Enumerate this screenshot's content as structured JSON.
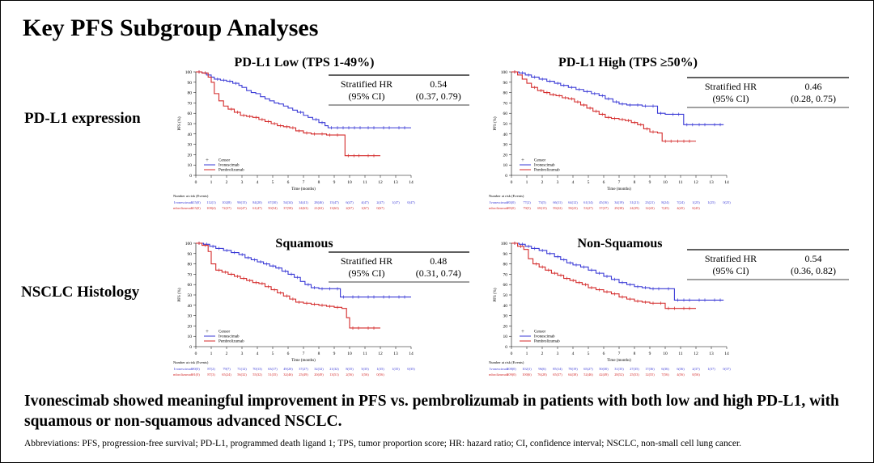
{
  "slide_title": "Key PFS Subgroup Analyses",
  "row_labels": [
    "PD-L1 expression",
    "NSCLC Histology"
  ],
  "conclusion": "Ivonescimab showed meaningful improvement in PFS vs. pembrolizumab in patients with both low and high PD-L1, with squamous or non-squamous advanced NSCLC.",
  "abbreviations": "Abbreviations: PFS, progression-free survival; PD-L1, programmed death ligand 1; TPS, tumor proportion score; HR: hazard ratio; CI, confidence interval; NSCLC, non-small cell lung cancer.",
  "colors": {
    "ivonescimab": "#3a3ad6",
    "pembrolizumab": "#d42a2a"
  },
  "chart_data": [
    {
      "type": "line",
      "title": "PD-L1 Low (TPS 1-49%)",
      "xlabel": "Time (months)",
      "ylabel": "PFS (%)",
      "xlim": [
        0,
        14
      ],
      "ylim": [
        0,
        100
      ],
      "x_ticks": [
        0,
        1,
        2,
        3,
        4,
        5,
        6,
        7,
        8,
        9,
        10,
        11,
        12,
        13,
        14
      ],
      "y_ticks": [
        0,
        10,
        20,
        30,
        40,
        50,
        60,
        70,
        80,
        90,
        100
      ],
      "legend": [
        "Censor",
        "Ivonescimab",
        "Pembrolizumab"
      ],
      "hr_label": [
        "Stratified HR",
        "(95% CI)"
      ],
      "hr_value": [
        "0.54",
        "(0.37, 0.79)"
      ],
      "series": [
        {
          "name": "Ivonescimab",
          "x": [
            0,
            0.4,
            0.7,
            1.0,
            1.2,
            1.6,
            2.0,
            2.4,
            2.8,
            3.0,
            3.3,
            3.6,
            3.9,
            4.2,
            4.5,
            4.8,
            5.1,
            5.4,
            5.7,
            6.0,
            6.3,
            6.6,
            7.0,
            7.3,
            7.6,
            8.0,
            8.4,
            8.6,
            9.0,
            11,
            12,
            13,
            14
          ],
          "y": [
            100,
            99,
            97,
            95,
            93,
            92,
            91,
            89,
            87,
            85,
            82,
            80,
            79,
            76,
            74,
            72,
            70,
            69,
            67,
            65,
            63,
            61,
            58,
            56,
            54,
            51,
            48,
            46,
            46,
            46,
            46,
            46,
            46
          ]
        },
        {
          "name": "Pembrolizumab",
          "x": [
            0,
            0.4,
            0.8,
            1.0,
            1.2,
            1.5,
            1.8,
            2.1,
            2.5,
            2.9,
            3.3,
            3.7,
            4.1,
            4.5,
            4.9,
            5.3,
            5.7,
            6.1,
            6.5,
            7.0,
            7.5,
            8.0,
            8.5,
            9.0,
            9.5,
            9.7,
            10.4,
            11,
            12
          ],
          "y": [
            100,
            99,
            95,
            90,
            79,
            72,
            67,
            64,
            61,
            58,
            57,
            56,
            54,
            52,
            50,
            48,
            47,
            46,
            43,
            41,
            40,
            40,
            39,
            39,
            39,
            19,
            19,
            19,
            19
          ]
        }
      ],
      "risk_table": {
        "header": "Number at risk (Events)",
        "rows": [
          {
            "name": "Ivonescimab",
            "values": [
              "115(0)",
              "112(1)",
              "102(8)",
              "90(15)",
              "84(20)",
              "67(30)",
              "54(34)",
              "34(41)",
              "28(46)",
              "15(47)",
              "6(47)",
              "4(47)",
              "2(47)",
              "1(47)",
              "0(47)"
            ]
          },
          {
            "name": "Pembrolizumab",
            "values": [
              "115(0)",
              "108(4)",
              "72(37)",
              "62(47)",
              "61(47)",
              "50(54)",
              "37(58)",
              "24(63)",
              "21(63)",
              "13(63)",
              "2(67)",
              "1(67)",
              "0(67)",
              "",
              ""
            ]
          }
        ]
      }
    },
    {
      "type": "line",
      "title": "PD-L1 High (TPS ≥50%)",
      "xlabel": "Time (months)",
      "ylabel": "PFS (%)",
      "xlim": [
        0,
        14
      ],
      "ylim": [
        0,
        100
      ],
      "x_ticks": [
        0,
        1,
        2,
        3,
        4,
        5,
        6,
        7,
        8,
        9,
        10,
        11,
        12,
        13,
        14
      ],
      "y_ticks": [
        0,
        10,
        20,
        30,
        40,
        50,
        60,
        70,
        80,
        90,
        100
      ],
      "legend": [
        "Censor",
        "Ivonescimab",
        "Pembrolizumab"
      ],
      "hr_label": [
        "Stratified HR",
        "(95% CI)"
      ],
      "hr_value": [
        "0.46",
        "(0.28, 0.75)"
      ],
      "series": [
        {
          "name": "Ivonescimab",
          "x": [
            0,
            0.5,
            0.9,
            1.3,
            1.8,
            2.3,
            2.8,
            3.2,
            3.7,
            4.2,
            4.7,
            5.2,
            5.7,
            6.1,
            6.6,
            7.0,
            7.5,
            8.0,
            8.5,
            9.0,
            9.5,
            10.0,
            10.3,
            11.2,
            12,
            13,
            13.8
          ],
          "y": [
            100,
            99,
            97,
            95,
            93,
            91,
            89,
            87,
            85,
            83,
            81,
            79,
            77,
            74,
            71,
            69,
            68,
            68,
            67,
            67,
            60,
            59,
            59,
            49,
            49,
            49,
            49
          ]
        },
        {
          "name": "Pembrolizumab",
          "x": [
            0,
            0.4,
            0.7,
            1.0,
            1.3,
            1.7,
            2.1,
            2.5,
            2.9,
            3.3,
            3.7,
            4.1,
            4.5,
            4.9,
            5.3,
            5.7,
            6.1,
            6.5,
            7.0,
            7.4,
            7.8,
            8.2,
            8.6,
            9.0,
            9.5,
            9.8,
            10.6,
            11,
            12
          ],
          "y": [
            100,
            97,
            93,
            89,
            85,
            82,
            80,
            78,
            77,
            75,
            74,
            71,
            68,
            65,
            62,
            59,
            56,
            55,
            54,
            53,
            51,
            49,
            45,
            42,
            41,
            33,
            33,
            33,
            33
          ]
        }
      ],
      "risk_table": {
        "header": "Number at risk (Events)",
        "rows": [
          {
            "name": "Ivonescimab",
            "values": [
              "83(0)",
              "77(2)",
              "73(5)",
              "66(11)",
              "64(12)",
              "61(14)",
              "45(16)",
              "34(19)",
              "31(21)",
              "23(21)",
              "8(24)",
              "7(24)",
              "1(25)",
              "1(25)",
              "0(25)"
            ]
          },
          {
            "name": "Pembrolizumab",
            "values": [
              "85(0)",
              "79(5)",
              "69(15)",
              "59(22)",
              "58(23)",
              "53(27)",
              "37(37)",
              "29(38)",
              "24(39)",
              "12(43)",
              "7(45)",
              "4(45)",
              "0(45)",
              "",
              ""
            ]
          }
        ]
      }
    },
    {
      "type": "line",
      "title": "Squamous",
      "xlabel": "Time (months)",
      "ylabel": "PFS (%)",
      "xlim": [
        0,
        14
      ],
      "ylim": [
        0,
        100
      ],
      "x_ticks": [
        0,
        1,
        2,
        3,
        4,
        5,
        6,
        7,
        8,
        9,
        10,
        11,
        12,
        13,
        14
      ],
      "y_ticks": [
        0,
        10,
        20,
        30,
        40,
        50,
        60,
        70,
        80,
        90,
        100
      ],
      "legend": [
        "Censor",
        "Ivonescimab",
        "Pembrolizumab"
      ],
      "hr_label": [
        "Stratified HR",
        "(95% CI)"
      ],
      "hr_value": [
        "0.48",
        "(0.31, 0.74)"
      ],
      "series": [
        {
          "name": "Ivonescimab",
          "x": [
            0,
            0.5,
            0.9,
            1.3,
            1.8,
            2.3,
            2.8,
            3.2,
            3.6,
            4.0,
            4.4,
            4.8,
            5.2,
            5.6,
            6.0,
            6.4,
            6.8,
            7.1,
            7.5,
            8.0,
            8.5,
            9.0,
            9.4,
            10,
            11,
            12,
            13,
            14
          ],
          "y": [
            100,
            99,
            97,
            95,
            93,
            91,
            89,
            86,
            84,
            82,
            80,
            78,
            76,
            73,
            70,
            67,
            63,
            60,
            57,
            56,
            56,
            56,
            48,
            48,
            48,
            48,
            48,
            48
          ]
        },
        {
          "name": "Pembrolizumab",
          "x": [
            0,
            0.4,
            0.8,
            1.0,
            1.3,
            1.7,
            2.1,
            2.5,
            2.9,
            3.3,
            3.7,
            4.1,
            4.5,
            4.9,
            5.3,
            5.7,
            6.1,
            6.5,
            7.0,
            7.5,
            8.0,
            8.5,
            9.0,
            9.5,
            9.8,
            10,
            11,
            12
          ],
          "y": [
            100,
            98,
            92,
            80,
            74,
            72,
            70,
            68,
            66,
            64,
            62,
            61,
            58,
            55,
            52,
            49,
            46,
            43,
            42,
            41,
            40,
            39,
            38,
            37,
            28,
            18,
            18,
            18
          ]
        }
      ],
      "risk_table": {
        "header": "Number at risk (Events)",
        "rows": [
          {
            "name": "Ivonescimab",
            "values": [
              "90(0)",
              "87(2)",
              "79(7)",
              "71(12)",
              "70(13)",
              "63(17)",
              "49(20)",
              "37(27)",
              "32(32)",
              "21(32)",
              "8(35)",
              "5(35)",
              "1(35)",
              "1(35)",
              "0(35)"
            ]
          },
          {
            "name": "Pembrolizumab",
            "values": [
              "91(0)",
              "87(3)",
              "65(24)",
              "56(32)",
              "55(32)",
              "51(35)",
              "32(46)",
              "25(49)",
              "20(49)",
              "13(51)",
              "2(56)",
              "1(56)",
              "0(56)",
              "",
              ""
            ]
          }
        ]
      }
    },
    {
      "type": "line",
      "title": "Non-Squamous",
      "xlabel": "Time (months)",
      "ylabel": "PFS (%)",
      "xlim": [
        0,
        14
      ],
      "ylim": [
        0,
        100
      ],
      "x_ticks": [
        0,
        1,
        2,
        3,
        4,
        5,
        6,
        7,
        8,
        9,
        10,
        11,
        12,
        13,
        14
      ],
      "y_ticks": [
        0,
        10,
        20,
        30,
        40,
        50,
        60,
        70,
        80,
        90,
        100
      ],
      "legend": [
        "Censor",
        "Ivonescimab",
        "Pembrolizumab"
      ],
      "hr_label": [
        "Stratified HR",
        "(95% CI)"
      ],
      "hr_value": [
        "0.54",
        "(0.36, 0.82)"
      ],
      "series": [
        {
          "name": "Ivonescimab",
          "x": [
            0,
            0.5,
            0.9,
            1.3,
            1.8,
            2.3,
            2.8,
            3.2,
            3.6,
            4.0,
            4.5,
            5.0,
            5.5,
            6.0,
            6.5,
            7.0,
            7.5,
            8.0,
            8.5,
            9.0,
            10,
            10.6,
            11,
            12,
            13,
            13.8
          ],
          "y": [
            100,
            99,
            97,
            95,
            93,
            90,
            87,
            84,
            81,
            79,
            77,
            74,
            71,
            68,
            65,
            62,
            60,
            58,
            57,
            56,
            56,
            45,
            45,
            45,
            45,
            45
          ]
        },
        {
          "name": "Pembrolizumab",
          "x": [
            0,
            0.4,
            0.8,
            1.1,
            1.4,
            1.8,
            2.2,
            2.6,
            3.0,
            3.4,
            3.8,
            4.2,
            4.6,
            5.0,
            5.5,
            6.0,
            6.5,
            7.0,
            7.5,
            8.0,
            8.5,
            9.0,
            9.5,
            10.0,
            10.4,
            11,
            12
          ],
          "y": [
            100,
            97,
            94,
            85,
            80,
            77,
            74,
            71,
            69,
            66,
            64,
            62,
            60,
            57,
            55,
            53,
            51,
            48,
            46,
            44,
            43,
            42,
            42,
            37,
            37,
            37,
            37
          ]
        }
      ],
      "risk_table": {
        "header": "Number at risk (Events)",
        "rows": [
          {
            "name": "Ivonescimab",
            "values": [
              "108(0)",
              "102(1)",
              "96(6)",
              "85(14)",
              "78(19)",
              "65(27)",
              "50(30)",
              "31(35)",
              "27(35)",
              "17(36)",
              "6(36)",
              "6(36)",
              "2(37)",
              "1(37)",
              "0(37)"
            ]
          },
          {
            "name": "Pembrolizumab",
            "values": [
              "109(0)",
              "100(6)",
              "76(28)",
              "65(37)",
              "64(38)",
              "52(46)",
              "42(49)",
              "28(52)",
              "25(53)",
              "12(55)",
              "7(56)",
              "4(56)",
              "0(56)",
              "",
              ""
            ]
          }
        ]
      }
    }
  ]
}
